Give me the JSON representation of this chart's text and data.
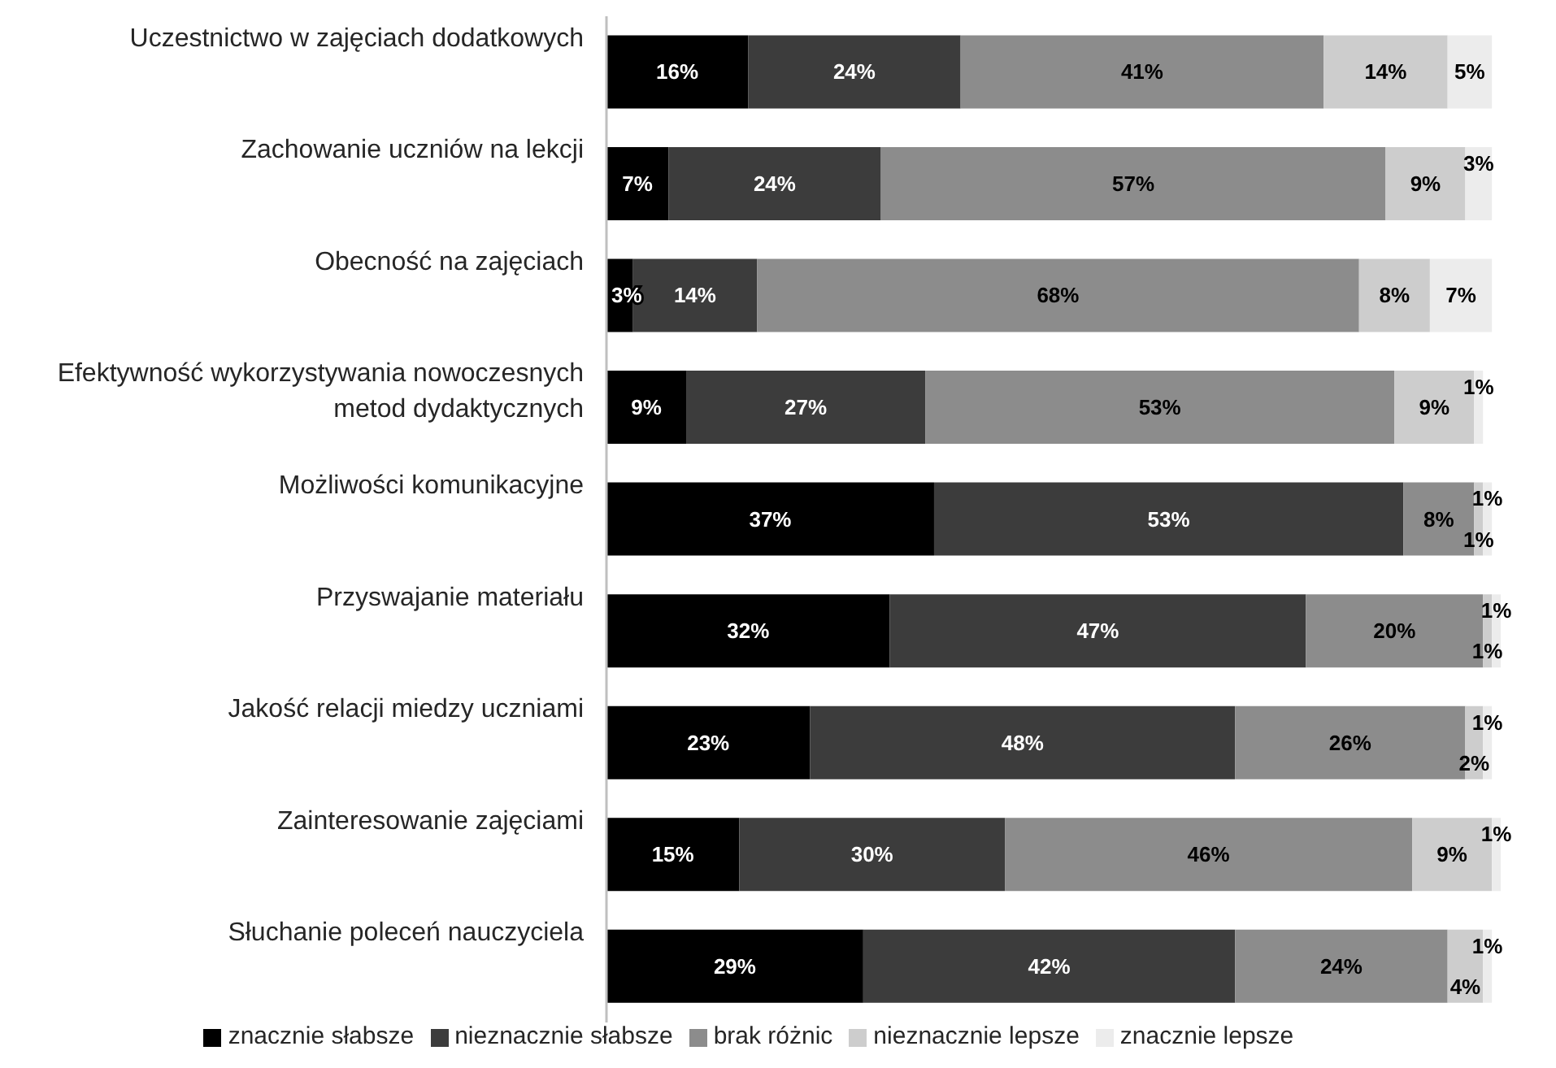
{
  "chart_data": {
    "type": "bar",
    "orientation": "horizontal",
    "stacked": true,
    "legend": "bottom",
    "tick_labels": "y",
    "categories": [
      "Uczestnictwo w zajęciach dodatkowych",
      "Zachowanie uczniów na lekcji",
      "Obecność na zajęciach",
      "Efektywność wykorzystywania nowoczesnych metod dydaktycznych",
      "Możliwości komunikacyjne",
      "Przyswajanie materiału",
      "Jakość relacji miedzy uczniami",
      "Zainteresowanie zajęciami",
      "Słuchanie poleceń nauczyciela"
    ],
    "series": [
      {
        "name": "znacznie słabsze",
        "color": "#000000",
        "values": [
          16,
          7,
          3,
          9,
          37,
          32,
          23,
          15,
          29
        ],
        "value_labels": [
          "16%",
          "7%",
          "3%",
          "9%",
          "37%",
          "32%",
          "23%",
          "15%",
          "29%"
        ]
      },
      {
        "name": "nieznacznie słabsze",
        "color": "#3c3c3c",
        "values": [
          24,
          24,
          14,
          27,
          53,
          47,
          48,
          30,
          42
        ],
        "value_labels": [
          "24%",
          "24%",
          "14%",
          "27%",
          "53%",
          "47%",
          "48%",
          "30%",
          "42%"
        ]
      },
      {
        "name": "brak różnic",
        "color": "#8c8c8c",
        "values": [
          41,
          57,
          68,
          53,
          8,
          20,
          26,
          46,
          24
        ],
        "value_labels": [
          "41%",
          "57%",
          "68%",
          "53%",
          "8%",
          "20%",
          "26%",
          "46%",
          "24%"
        ]
      },
      {
        "name": "nieznacznie lepsze",
        "color": "#cdcdcd",
        "values": [
          14,
          9,
          8,
          9,
          1,
          1,
          2,
          9,
          4
        ],
        "value_labels": [
          "14%",
          "9%",
          "8%",
          "9%",
          "1%",
          "1%",
          "2%",
          "9%",
          "4%"
        ]
      },
      {
        "name": "znacznie lepsze",
        "color": "#ececec",
        "values": [
          5,
          3,
          7,
          1,
          1,
          1,
          1,
          1,
          1
        ],
        "value_labels": [
          "5%",
          "3%",
          "7%",
          "1%",
          "1%",
          "1%",
          "1%",
          "1%",
          "1%"
        ]
      }
    ]
  }
}
